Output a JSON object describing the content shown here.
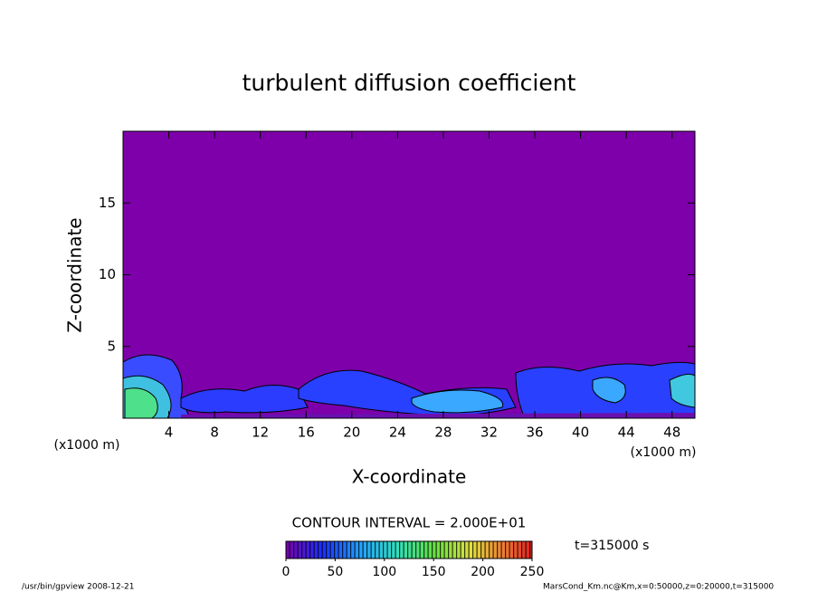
{
  "chart_data": {
    "type": "contour",
    "title": "turbulent diffusion coefficient",
    "xlabel": "X-coordinate",
    "ylabel": "Z-coordinate",
    "x_unit": "(x1000 m)",
    "xlim": [
      0,
      50
    ],
    "ylim": [
      0,
      20
    ],
    "xticks": [
      4,
      8,
      12,
      16,
      20,
      24,
      28,
      32,
      36,
      40,
      44,
      48
    ],
    "yticks": [
      5,
      10,
      15
    ],
    "contour_interval_label": "CONTOUR INTERVAL = 2.000E+01",
    "colorbar": {
      "clim": [
        0,
        250
      ],
      "ticks": [
        0,
        50,
        100,
        150,
        200,
        250
      ]
    },
    "time_label": "t=315000 s",
    "footer_left": "/usr/bin/gpview   2008-12-21",
    "footer_right": "MarsCond_Km.nc@Km,x=0:50000,z=0:20000,t=315000"
  }
}
